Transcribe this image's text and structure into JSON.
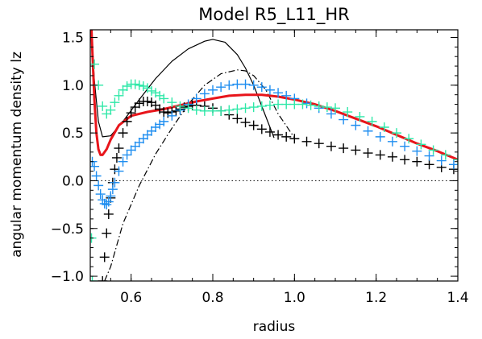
{
  "chart_data": {
    "type": "line",
    "title": "Model R5_L11_HR",
    "xlabel": "radius",
    "ylabel": "angular momentum density lz",
    "xlim": [
      0.5,
      1.4
    ],
    "ylim": [
      -1.05,
      1.58
    ],
    "xticks": [
      0.6,
      0.8,
      1.0,
      1.2,
      1.4
    ],
    "xtick_labels": [
      "0.6",
      "0.8",
      "1.0",
      "1.2",
      "1.4"
    ],
    "yticks": [
      -1.0,
      -0.5,
      0.0,
      0.5,
      1.0,
      1.5
    ],
    "ytick_labels": [
      "−1.0",
      "−0.5",
      "0.0",
      "0.5",
      "1.0",
      "1.5"
    ],
    "grid": false,
    "reference_line": {
      "y": 0.0,
      "style": "dotted",
      "color": "#000000"
    },
    "series": [
      {
        "style": "solid",
        "color": "#000000",
        "marker": "none",
        "x": [
          0.503,
          0.51,
          0.52,
          0.53,
          0.55,
          0.58,
          0.62,
          0.66,
          0.7,
          0.74,
          0.78,
          0.8,
          0.83,
          0.86,
          0.88,
          0.9,
          0.92,
          0.95
        ],
        "y": [
          1.58,
          1.05,
          0.62,
          0.46,
          0.47,
          0.62,
          0.85,
          1.07,
          1.25,
          1.38,
          1.46,
          1.48,
          1.45,
          1.32,
          1.18,
          1.0,
          0.78,
          0.45
        ]
      },
      {
        "style": "dashdot",
        "color": "#000000",
        "marker": "none",
        "x": [
          0.535,
          0.55,
          0.58,
          0.62,
          0.66,
          0.7,
          0.74,
          0.78,
          0.82,
          0.86,
          0.88,
          0.9,
          0.93,
          0.96,
          1.0
        ],
        "y": [
          -1.05,
          -0.9,
          -0.45,
          -0.05,
          0.28,
          0.55,
          0.8,
          1.0,
          1.12,
          1.16,
          1.15,
          1.1,
          0.95,
          0.7,
          0.45
        ]
      },
      {
        "style": "solid",
        "color": "#e8151b",
        "marker": "none",
        "x": [
          0.503,
          0.51,
          0.515,
          0.52,
          0.525,
          0.53,
          0.54,
          0.55,
          0.57,
          0.6,
          0.64,
          0.68,
          0.72,
          0.76,
          0.8,
          0.84,
          0.88,
          0.92,
          0.96,
          1.0,
          1.05,
          1.1,
          1.15,
          1.2,
          1.25,
          1.3,
          1.35,
          1.4
        ],
        "y": [
          1.58,
          0.85,
          0.5,
          0.33,
          0.27,
          0.27,
          0.33,
          0.43,
          0.58,
          0.68,
          0.72,
          0.75,
          0.79,
          0.83,
          0.86,
          0.89,
          0.9,
          0.9,
          0.88,
          0.85,
          0.8,
          0.73,
          0.65,
          0.57,
          0.48,
          0.39,
          0.31,
          0.22
        ]
      },
      {
        "style": "plus",
        "color": "#000000",
        "marker": "plus",
        "x": [
          0.53,
          0.535,
          0.54,
          0.545,
          0.55,
          0.555,
          0.56,
          0.565,
          0.57,
          0.58,
          0.59,
          0.6,
          0.61,
          0.62,
          0.63,
          0.64,
          0.65,
          0.66,
          0.67,
          0.68,
          0.69,
          0.7,
          0.71,
          0.72,
          0.73,
          0.74,
          0.75,
          0.76,
          0.78,
          0.8,
          0.82,
          0.84,
          0.86,
          0.88,
          0.9,
          0.92,
          0.94,
          0.96,
          0.98,
          1.0,
          1.03,
          1.06,
          1.09,
          1.12,
          1.15,
          1.18,
          1.21,
          1.24,
          1.27,
          1.3,
          1.33,
          1.36,
          1.39
        ],
        "y": [
          -1.05,
          -0.8,
          -0.55,
          -0.35,
          -0.18,
          -0.02,
          0.12,
          0.24,
          0.34,
          0.5,
          0.62,
          0.71,
          0.77,
          0.81,
          0.83,
          0.83,
          0.82,
          0.79,
          0.75,
          0.72,
          0.71,
          0.72,
          0.73,
          0.75,
          0.77,
          0.78,
          0.79,
          0.79,
          0.78,
          0.76,
          0.73,
          0.69,
          0.65,
          0.61,
          0.58,
          0.54,
          0.51,
          0.48,
          0.46,
          0.44,
          0.41,
          0.39,
          0.36,
          0.34,
          0.32,
          0.29,
          0.27,
          0.25,
          0.22,
          0.2,
          0.17,
          0.14,
          0.12
        ]
      },
      {
        "style": "plus",
        "color": "#1f8ef0",
        "marker": "plus",
        "x": [
          0.505,
          0.51,
          0.515,
          0.52,
          0.525,
          0.53,
          0.535,
          0.54,
          0.545,
          0.55,
          0.555,
          0.56,
          0.57,
          0.58,
          0.59,
          0.6,
          0.61,
          0.62,
          0.63,
          0.64,
          0.65,
          0.66,
          0.67,
          0.68,
          0.7,
          0.72,
          0.74,
          0.76,
          0.78,
          0.8,
          0.82,
          0.84,
          0.86,
          0.88,
          0.9,
          0.92,
          0.94,
          0.96,
          0.98,
          1.0,
          1.03,
          1.06,
          1.09,
          1.12,
          1.15,
          1.18,
          1.21,
          1.24,
          1.27,
          1.3,
          1.33,
          1.36,
          1.39
        ],
        "y": [
          0.2,
          0.15,
          0.05,
          -0.05,
          -0.14,
          -0.2,
          -0.24,
          -0.25,
          -0.22,
          -0.16,
          -0.09,
          -0.02,
          0.1,
          0.2,
          0.27,
          0.32,
          0.36,
          0.4,
          0.44,
          0.48,
          0.52,
          0.56,
          0.59,
          0.62,
          0.68,
          0.74,
          0.8,
          0.86,
          0.91,
          0.95,
          0.98,
          1.0,
          1.01,
          1.01,
          1.0,
          0.98,
          0.95,
          0.92,
          0.89,
          0.86,
          0.81,
          0.76,
          0.7,
          0.64,
          0.58,
          0.52,
          0.46,
          0.41,
          0.36,
          0.31,
          0.26,
          0.21,
          0.17
        ]
      },
      {
        "style": "plus",
        "color": "#2fe8a8",
        "marker": "plus",
        "x": [
          0.503,
          0.505,
          0.51,
          0.52,
          0.53,
          0.54,
          0.55,
          0.56,
          0.57,
          0.58,
          0.59,
          0.6,
          0.61,
          0.62,
          0.63,
          0.64,
          0.65,
          0.66,
          0.67,
          0.68,
          0.7,
          0.72,
          0.74,
          0.76,
          0.78,
          0.8,
          0.82,
          0.84,
          0.86,
          0.88,
          0.9,
          0.92,
          0.94,
          0.96,
          0.98,
          1.0,
          1.02,
          1.04,
          1.06,
          1.08,
          1.1,
          1.13,
          1.16,
          1.19,
          1.22,
          1.25,
          1.28,
          1.31,
          1.34,
          1.37,
          1.4
        ],
        "y": [
          -0.6,
          -1.05,
          1.22,
          1.0,
          0.78,
          0.7,
          0.74,
          0.82,
          0.89,
          0.95,
          0.99,
          1.01,
          1.01,
          1.0,
          0.99,
          0.97,
          0.94,
          0.92,
          0.89,
          0.86,
          0.82,
          0.78,
          0.76,
          0.74,
          0.73,
          0.73,
          0.73,
          0.74,
          0.75,
          0.76,
          0.77,
          0.78,
          0.79,
          0.8,
          0.8,
          0.8,
          0.8,
          0.79,
          0.78,
          0.77,
          0.76,
          0.72,
          0.67,
          0.62,
          0.56,
          0.5,
          0.44,
          0.38,
          0.32,
          0.27,
          0.22
        ]
      }
    ]
  }
}
